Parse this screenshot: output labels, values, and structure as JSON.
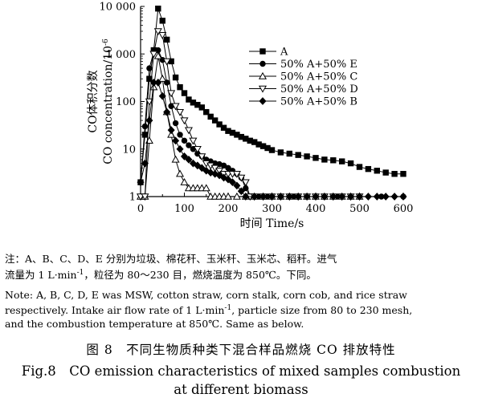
{
  "chart_data": {
    "type": "line",
    "ylabel_cn": "CO体积分数",
    "ylabel_en": "CO concentration/10",
    "ylabel_exp": "-6",
    "xlabel": "时间 Time/s",
    "xlim": [
      0,
      600
    ],
    "ylim": [
      1,
      10000
    ],
    "yscale": "log",
    "xticks": [
      "0",
      "100",
      "200",
      "300",
      "400",
      "500",
      "600"
    ],
    "yticks": [
      "1",
      "10",
      "100",
      "1 000",
      "10 000"
    ],
    "legend_position": "upper-right",
    "series": [
      {
        "name": "A",
        "marker": "square",
        "x": [
          0,
          10,
          20,
          30,
          40,
          50,
          60,
          70,
          80,
          90,
          100,
          110,
          120,
          130,
          140,
          150,
          160,
          170,
          180,
          190,
          200,
          210,
          220,
          230,
          240,
          250,
          260,
          270,
          280,
          290,
          300,
          320,
          340,
          360,
          380,
          400,
          420,
          440,
          460,
          480,
          500,
          520,
          540,
          560,
          580,
          600
        ],
        "y": [
          2,
          20,
          300,
          1200,
          9000,
          5000,
          2000,
          700,
          320,
          200,
          150,
          110,
          95,
          85,
          75,
          60,
          48,
          40,
          33,
          28,
          24,
          22,
          20,
          18,
          16.5,
          15,
          14,
          12.5,
          11.5,
          10.5,
          9.5,
          8.5,
          8,
          7.5,
          7,
          6.5,
          6,
          5.8,
          5.5,
          5,
          4.2,
          3.8,
          3.5,
          3.2,
          3,
          3
        ]
      },
      {
        "name": "50% A+50% E",
        "marker": "circle",
        "x": [
          0,
          10,
          20,
          30,
          40,
          50,
          60,
          70,
          80,
          90,
          100,
          110,
          120,
          130,
          140,
          150,
          160,
          170,
          180,
          190,
          200,
          210,
          220,
          230,
          240,
          250,
          260,
          270,
          280,
          290,
          300,
          350,
          400,
          450,
          500,
          550,
          600
        ],
        "y": [
          2,
          30,
          500,
          1100,
          1200,
          750,
          250,
          80,
          35,
          20,
          15,
          12,
          10,
          8,
          7,
          6,
          5.5,
          5,
          4.8,
          4.5,
          4,
          3.5,
          3,
          2.5,
          1.5,
          1,
          1,
          1,
          1,
          1,
          1,
          1,
          1,
          1,
          1,
          1,
          1
        ]
      },
      {
        "name": "50% A+50% C",
        "marker": "triangle-up",
        "x": [
          0,
          10,
          20,
          30,
          40,
          50,
          60,
          70,
          80,
          90,
          100,
          110,
          120,
          130,
          140,
          150,
          160,
          170,
          180,
          190,
          200,
          220,
          240,
          260,
          280,
          300,
          320,
          340,
          360,
          380,
          400,
          420,
          440,
          460,
          480,
          500
        ],
        "y": [
          1,
          1,
          15,
          200,
          900,
          300,
          60,
          20,
          6,
          3,
          2,
          1.5,
          1.5,
          1.5,
          1.5,
          1.5,
          1,
          1,
          1,
          1,
          1,
          1,
          1,
          1,
          1,
          1,
          1,
          1,
          1,
          1,
          1,
          1,
          1,
          1,
          1,
          1
        ]
      },
      {
        "name": "50% A+50% D",
        "marker": "triangle-down",
        "x": [
          0,
          10,
          20,
          30,
          40,
          50,
          60,
          70,
          80,
          90,
          100,
          110,
          120,
          130,
          140,
          150,
          160,
          170,
          180,
          190,
          200,
          210,
          220,
          230,
          240,
          250,
          260,
          280,
          300,
          320,
          340,
          360,
          380,
          400,
          420,
          440,
          460,
          480,
          500
        ],
        "y": [
          1,
          1,
          100,
          1000,
          3000,
          2500,
          700,
          150,
          80,
          60,
          40,
          25,
          15,
          10,
          7,
          5,
          4.5,
          4,
          3.5,
          3,
          3,
          3,
          3,
          2.5,
          2,
          1,
          1,
          1,
          1,
          1,
          1,
          1,
          1,
          1,
          1,
          1,
          1,
          1,
          1
        ]
      },
      {
        "name": "50% A+50% B",
        "marker": "diamond",
        "x": [
          0,
          10,
          20,
          30,
          40,
          50,
          60,
          70,
          80,
          90,
          100,
          110,
          120,
          130,
          140,
          150,
          160,
          170,
          180,
          190,
          200,
          210,
          220,
          230,
          240,
          260,
          280,
          300,
          320,
          340,
          360,
          380,
          400,
          420,
          440,
          460,
          480,
          500,
          520,
          540,
          560,
          580,
          600
        ],
        "y": [
          2,
          5,
          40,
          250,
          250,
          130,
          60,
          25,
          15,
          10,
          7,
          6,
          5,
          4.5,
          4,
          3.5,
          3.2,
          3,
          2.8,
          2.5,
          2.3,
          2,
          1.7,
          1.3,
          1,
          1,
          1,
          1,
          1,
          1,
          1,
          1,
          1,
          1,
          1,
          1,
          1,
          1,
          1,
          1,
          1,
          1,
          1
        ]
      }
    ]
  },
  "note": {
    "cn_line1": "注：A、B、C、D、E 分别为垃圾、棉花秆、玉米秆、玉米芯、稻秆。进气",
    "cn_line2": "流量为 1 L·min",
    "cn_line2_sup": "-1",
    "cn_line2_rest": "，粒径为 80～230 目，燃烧温度为 850℃。下同。",
    "en_line1": "Note: A, B, C, D, E was MSW, cotton straw, corn stalk, corn cob, and rice straw",
    "en_line2": "respectively. Intake air flow rate of 1 L·min",
    "en_line2_sup": "-1",
    "en_line2_rest": ", particle size from 80 to 230 mesh,",
    "en_line3": "and the combustion temperature at 850℃. Same as below."
  },
  "caption": {
    "cn": "图 8　不同生物质种类下混合样品燃烧 CO 排放特性",
    "en_line1": "Fig.8　CO emission characteristics of mixed samples combustion",
    "en_line2": "at different biomass"
  }
}
